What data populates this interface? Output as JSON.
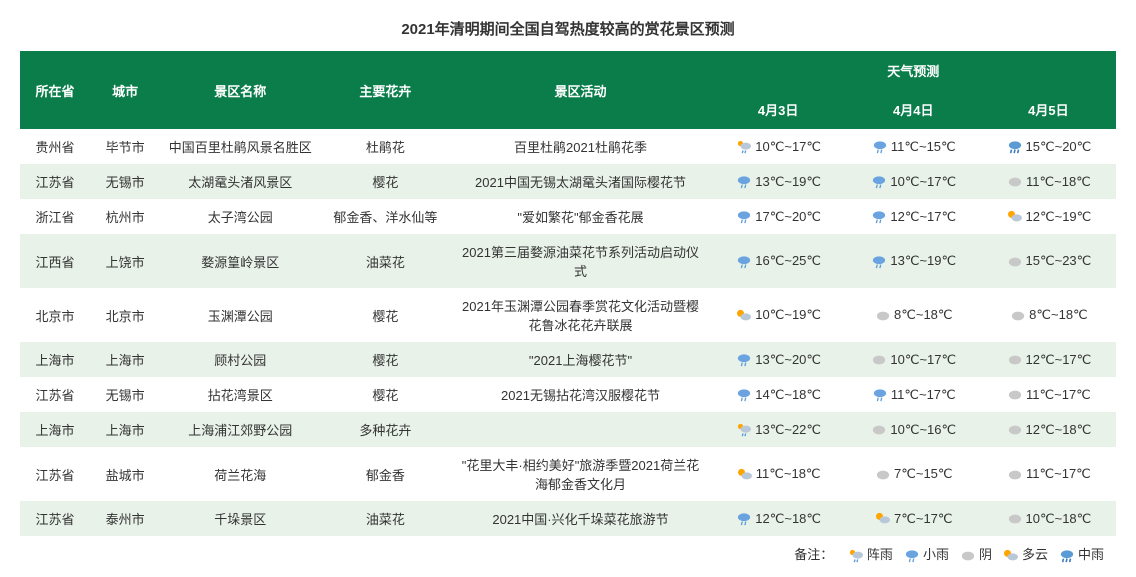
{
  "title": "2021年清明期间全国自驾热度较高的赏花景区预测",
  "columns": {
    "province": "所在省",
    "city": "城市",
    "scenic": "景区名称",
    "flower": "主要花卉",
    "activity": "景区活动",
    "weather": "天气预测",
    "day1": "4月3日",
    "day2": "4月4日",
    "day3": "4月5日"
  },
  "weather_colors": {
    "shower": {
      "cloud": "#b8c8d8",
      "sun": "#ffa500",
      "drop": "#5b9bd5"
    },
    "light_rain": {
      "cloud": "#6aa3e0",
      "drop": "#5b9bd5"
    },
    "overcast": {
      "cloud": "#c8c8c8"
    },
    "partly_cloudy": {
      "cloud": "#b8c8d8",
      "sun": "#ffa500"
    },
    "moderate_rain": {
      "cloud": "#5b9bd5",
      "drop": "#3a7bc0"
    }
  },
  "rows": [
    {
      "province": "贵州省",
      "city": "毕节市",
      "scenic": "中国百里杜鹃风景名胜区",
      "flower": "杜鹃花",
      "activity": "百里杜鹃2021杜鹃花季",
      "w1": {
        "icon": "shower",
        "temp": "10℃~17℃"
      },
      "w2": {
        "icon": "light_rain",
        "temp": "11℃~15℃"
      },
      "w3": {
        "icon": "moderate_rain",
        "temp": "15℃~20℃"
      }
    },
    {
      "province": "江苏省",
      "city": "无锡市",
      "scenic": "太湖鼋头渚风景区",
      "flower": "樱花",
      "activity": "2021中国无锡太湖鼋头渚国际樱花节",
      "w1": {
        "icon": "light_rain",
        "temp": "13℃~19℃"
      },
      "w2": {
        "icon": "light_rain",
        "temp": "10℃~17℃"
      },
      "w3": {
        "icon": "overcast",
        "temp": "11℃~18℃"
      }
    },
    {
      "province": "浙江省",
      "city": "杭州市",
      "scenic": "太子湾公园",
      "flower": "郁金香、洋水仙等",
      "activity": "\"爱如繁花\"郁金香花展",
      "w1": {
        "icon": "light_rain",
        "temp": "17℃~20℃"
      },
      "w2": {
        "icon": "light_rain",
        "temp": "12℃~17℃"
      },
      "w3": {
        "icon": "partly_cloudy",
        "temp": "12℃~19℃"
      }
    },
    {
      "province": "江西省",
      "city": "上饶市",
      "scenic": "婺源篁岭景区",
      "flower": "油菜花",
      "activity": "2021第三届婺源油菜花节系列活动启动仪式",
      "w1": {
        "icon": "light_rain",
        "temp": "16℃~25℃"
      },
      "w2": {
        "icon": "light_rain",
        "temp": "13℃~19℃"
      },
      "w3": {
        "icon": "overcast",
        "temp": "15℃~23℃"
      }
    },
    {
      "province": "北京市",
      "city": "北京市",
      "scenic": "玉渊潭公园",
      "flower": "樱花",
      "activity": "2021年玉渊潭公园春季赏花文化活动暨樱花鲁冰花花卉联展",
      "w1": {
        "icon": "partly_cloudy",
        "temp": "10℃~19℃"
      },
      "w2": {
        "icon": "overcast",
        "temp": "8℃~18℃"
      },
      "w3": {
        "icon": "overcast",
        "temp": "8℃~18℃"
      }
    },
    {
      "province": "上海市",
      "city": "上海市",
      "scenic": "顾村公园",
      "flower": "樱花",
      "activity": "\"2021上海樱花节\"",
      "w1": {
        "icon": "light_rain",
        "temp": "13℃~20℃"
      },
      "w2": {
        "icon": "overcast",
        "temp": "10℃~17℃"
      },
      "w3": {
        "icon": "overcast",
        "temp": "12℃~17℃"
      }
    },
    {
      "province": "江苏省",
      "city": "无锡市",
      "scenic": "拈花湾景区",
      "flower": "樱花",
      "activity": "2021无锡拈花湾汉服樱花节",
      "w1": {
        "icon": "light_rain",
        "temp": "14℃~18℃"
      },
      "w2": {
        "icon": "light_rain",
        "temp": "11℃~17℃"
      },
      "w3": {
        "icon": "overcast",
        "temp": "11℃~17℃"
      }
    },
    {
      "province": "上海市",
      "city": "上海市",
      "scenic": "上海浦江郊野公园",
      "flower": "多种花卉",
      "activity": "",
      "w1": {
        "icon": "shower",
        "temp": "13℃~22℃"
      },
      "w2": {
        "icon": "overcast",
        "temp": "10℃~16℃"
      },
      "w3": {
        "icon": "overcast",
        "temp": "12℃~18℃"
      }
    },
    {
      "province": "江苏省",
      "city": "盐城市",
      "scenic": "荷兰花海",
      "flower": "郁金香",
      "activity": "\"花里大丰·相约美好\"旅游季暨2021荷兰花海郁金香文化月",
      "w1": {
        "icon": "partly_cloudy",
        "temp": "11℃~18℃"
      },
      "w2": {
        "icon": "overcast",
        "temp": "7℃~15℃"
      },
      "w3": {
        "icon": "overcast",
        "temp": "11℃~17℃"
      }
    },
    {
      "province": "江苏省",
      "city": "泰州市",
      "scenic": "千垛景区",
      "flower": "油菜花",
      "activity": "2021中国·兴化千垛菜花旅游节",
      "w1": {
        "icon": "light_rain",
        "temp": "12℃~18℃"
      },
      "w2": {
        "icon": "partly_cloudy",
        "temp": "7℃~17℃"
      },
      "w3": {
        "icon": "overcast",
        "temp": "10℃~18℃"
      }
    }
  ],
  "legend": {
    "label": "备注：",
    "items": [
      {
        "icon": "shower",
        "text": "阵雨"
      },
      {
        "icon": "light_rain",
        "text": "小雨"
      },
      {
        "icon": "overcast",
        "text": "阴"
      },
      {
        "icon": "partly_cloudy",
        "text": "多云"
      },
      {
        "icon": "moderate_rain",
        "text": "中雨"
      }
    ]
  }
}
